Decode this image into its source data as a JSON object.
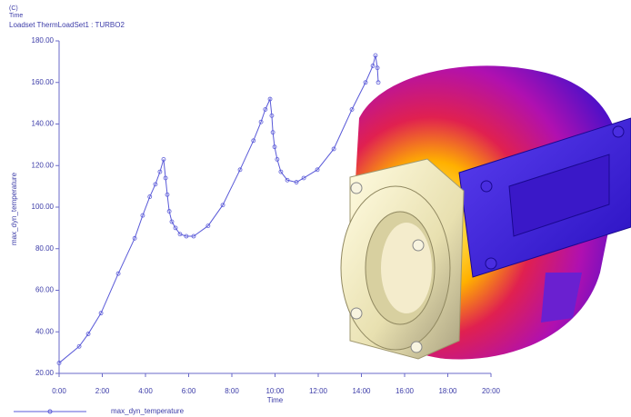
{
  "chart_data": {
    "type": "line",
    "annotations": [
      "(C)",
      "Time"
    ],
    "title": "Loadset ThermLoadSet1 : TURBO2",
    "xlabel": "Time",
    "ylabel": "max_dyn_temperature",
    "x": [
      0,
      0.93,
      1.35,
      1.94,
      2.74,
      3.5,
      3.87,
      4.2,
      4.46,
      4.67,
      4.84,
      4.93,
      5.01,
      5.1,
      5.22,
      5.39,
      5.6,
      5.89,
      6.23,
      6.9,
      7.58,
      8.38,
      9.0,
      9.35,
      9.55,
      9.77,
      9.85,
      9.9,
      9.98,
      10.1,
      10.27,
      10.57,
      10.99,
      11.33,
      11.96,
      12.72,
      13.56,
      14.19,
      14.53,
      14.65,
      14.74,
      14.78
    ],
    "series": [
      {
        "name": "max_dyn_temperature",
        "color": "#5a5ad8",
        "values": [
          25,
          33,
          39,
          49,
          68,
          85,
          96,
          105,
          111,
          117,
          123,
          114,
          106,
          98,
          93,
          90,
          87,
          86,
          86,
          91,
          101,
          118,
          132,
          141,
          147,
          152,
          144,
          136,
          129,
          123,
          117,
          113,
          112,
          114,
          118,
          128,
          147,
          160,
          168,
          173,
          167,
          160
        ]
      }
    ],
    "xlim": [
      0,
      20
    ],
    "xticks": [
      {
        "value": 0,
        "label": "0:00"
      },
      {
        "value": 2,
        "label": "2:00"
      },
      {
        "value": 4,
        "label": "4:00"
      },
      {
        "value": 6,
        "label": "6:00"
      },
      {
        "value": 8,
        "label": "8:00"
      },
      {
        "value": 10,
        "label": "10:00"
      },
      {
        "value": 12,
        "label": "12:00"
      },
      {
        "value": 14,
        "label": "14:00"
      },
      {
        "value": 16,
        "label": "16:00"
      },
      {
        "value": 18,
        "label": "18:00"
      },
      {
        "value": 20,
        "label": "20:00"
      }
    ],
    "ylim": [
      20,
      180
    ],
    "yticks": [
      {
        "value": 20,
        "label": "20.00"
      },
      {
        "value": 40,
        "label": "40.00"
      },
      {
        "value": 60,
        "label": "60.00"
      },
      {
        "value": 80,
        "label": "80.00"
      },
      {
        "value": 100,
        "label": "100.00"
      },
      {
        "value": 120,
        "label": "120.00"
      },
      {
        "value": 140,
        "label": "140.00"
      },
      {
        "value": 160,
        "label": "160.00"
      },
      {
        "value": 180,
        "label": "180.00"
      }
    ],
    "grid": false,
    "legend": "bottom-left"
  }
}
